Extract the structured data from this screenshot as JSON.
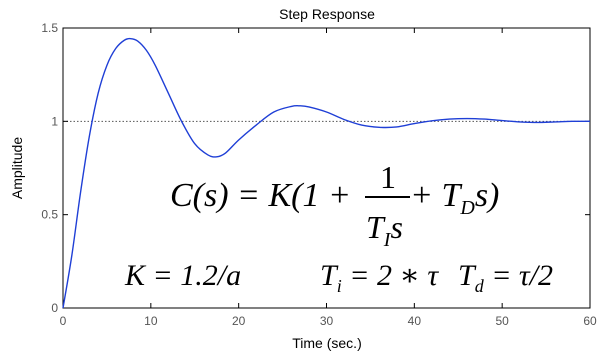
{
  "chart_data": {
    "type": "line",
    "title": "Step Response",
    "xlabel": "Time (sec.)",
    "ylabel": "Amplitude",
    "xlim": [
      0,
      60
    ],
    "ylim": [
      0,
      1.5
    ],
    "xticks": [
      0,
      10,
      20,
      30,
      40,
      50,
      60
    ],
    "yticks": [
      0,
      0.5,
      1,
      1.5
    ],
    "xtick_labels": [
      "0",
      "10",
      "20",
      "30",
      "40",
      "50",
      "60"
    ],
    "ytick_labels": [
      "0",
      "0.5",
      "1",
      "1.5"
    ],
    "grid": false,
    "reference_line": {
      "y": 1,
      "style": "dotted"
    },
    "series": [
      {
        "color": "#1f3fd6",
        "x": [
          0,
          1,
          2,
          3,
          4,
          5,
          6,
          7,
          7.7,
          8.5,
          9.5,
          10.5,
          12,
          13.5,
          15,
          16.5,
          17.5,
          18.5,
          20,
          22,
          24,
          26,
          27,
          28,
          30,
          32,
          34,
          36,
          38,
          40,
          42,
          44,
          46,
          48,
          50,
          52,
          54,
          56,
          58,
          60
        ],
        "y": [
          0,
          0.28,
          0.62,
          0.92,
          1.15,
          1.3,
          1.39,
          1.435,
          1.443,
          1.43,
          1.38,
          1.3,
          1.15,
          1.0,
          0.88,
          0.82,
          0.81,
          0.83,
          0.9,
          0.98,
          1.05,
          1.08,
          1.083,
          1.077,
          1.05,
          1.01,
          0.98,
          0.968,
          0.97,
          0.988,
          1.003,
          1.012,
          1.015,
          1.012,
          1.004,
          0.997,
          0.994,
          0.997,
          1.0,
          1.0
        ]
      }
    ]
  },
  "equation": {
    "lhs": "C(s) = K(1 + ",
    "numerator": "1",
    "denominator_main": "T",
    "denominator_sub": "I",
    "denominator_tail": "s",
    "tail_plus": " + T",
    "tail_sub": "D",
    "tail_end": "s)"
  },
  "params": {
    "k": "K = 1.2/a",
    "ti_main": "T",
    "ti_sub": "i",
    "ti_rest": " = 2 ∗ τ",
    "td_main": "T",
    "td_sub": "d",
    "td_rest": " = τ/2"
  }
}
